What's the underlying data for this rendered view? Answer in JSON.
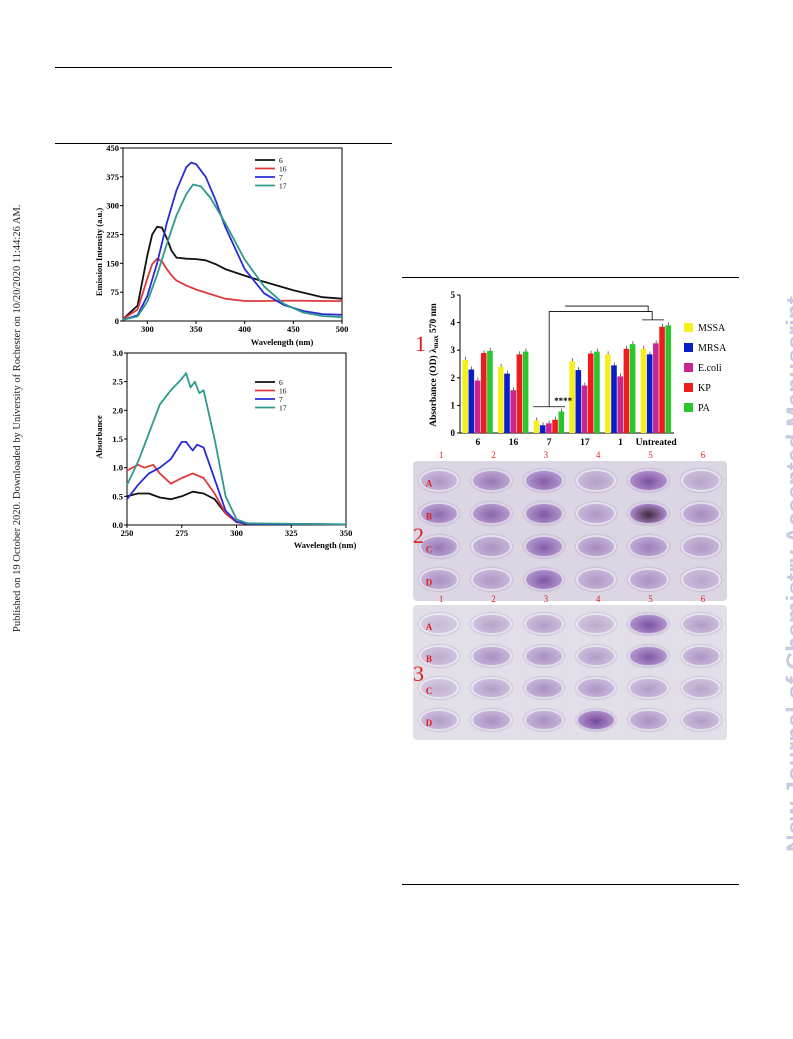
{
  "side_notes": {
    "published": "Published on 19 October 2020. Downloaded by University of Rochester on 10/20/2020 11:44:26 AM.",
    "journal": "New Journal of Chemistry Accepted Manuscript"
  },
  "colors": {
    "s6": "#111111",
    "s16": "#e0393b",
    "s7": "#2b2bd6",
    "s17": "#2d9a8c",
    "MSSA": "#f4ef1d",
    "MRSA": "#0a1ec8",
    "E.coli": "#c8258f",
    "KP": "#ee1c1c",
    "PA": "#2bc62b",
    "plate_purple": "#8a52b5"
  },
  "chart_data": [
    {
      "type": "line",
      "ylabel": "Emission Intensity (a.u.)",
      "xlabel": "Wavelength (nm)",
      "xlim": [
        275,
        500
      ],
      "ylim": [
        0,
        450
      ],
      "xticks": [
        "300",
        "350",
        "400",
        "450",
        "500"
      ],
      "yticks": [
        "0",
        "75",
        "150",
        "225",
        "300",
        "375",
        "450"
      ],
      "legend_position": "top-right",
      "series": [
        {
          "name": "6",
          "color_key": "s6",
          "x": [
            275,
            290,
            300,
            305,
            310,
            315,
            320,
            325,
            330,
            340,
            350,
            360,
            370,
            380,
            400,
            420,
            450,
            480,
            500
          ],
          "y": [
            5,
            40,
            170,
            225,
            245,
            243,
            215,
            182,
            165,
            162,
            161,
            158,
            148,
            135,
            118,
            102,
            80,
            62,
            58
          ]
        },
        {
          "name": "16",
          "color_key": "s16",
          "x": [
            275,
            290,
            300,
            305,
            310,
            315,
            320,
            325,
            330,
            340,
            350,
            360,
            380,
            400,
            420,
            450,
            480,
            500
          ],
          "y": [
            5,
            30,
            110,
            148,
            162,
            155,
            135,
            118,
            105,
            92,
            82,
            74,
            58,
            52,
            52,
            53,
            52,
            52
          ]
        },
        {
          "name": "7",
          "color_key": "s7",
          "x": [
            275,
            290,
            300,
            310,
            320,
            330,
            340,
            345,
            350,
            360,
            370,
            380,
            400,
            420,
            440,
            460,
            480,
            500
          ],
          "y": [
            3,
            15,
            65,
            150,
            255,
            340,
            400,
            412,
            408,
            375,
            315,
            245,
            135,
            72,
            42,
            26,
            18,
            16
          ]
        },
        {
          "name": "17",
          "color_key": "s17",
          "x": [
            275,
            290,
            300,
            310,
            320,
            330,
            340,
            347,
            355,
            365,
            380,
            400,
            420,
            440,
            460,
            480,
            500
          ],
          "y": [
            3,
            12,
            50,
            120,
            200,
            275,
            330,
            355,
            350,
            320,
            255,
            160,
            90,
            45,
            22,
            13,
            10
          ]
        }
      ]
    },
    {
      "type": "line",
      "ylabel": "Absorbance",
      "xlabel": "Wavelength (nm)",
      "xlim": [
        250,
        350
      ],
      "ylim": [
        0,
        3.0
      ],
      "xticks": [
        "250",
        "275",
        "300",
        "325",
        "350"
      ],
      "yticks": [
        "0.0",
        "0.5",
        "1.0",
        "1.5",
        "2.0",
        "2.5",
        "3.0"
      ],
      "legend_position": "top-right",
      "series": [
        {
          "name": "6",
          "color_key": "s6",
          "x": [
            250,
            255,
            260,
            265,
            270,
            275,
            280,
            285,
            290,
            295,
            300,
            305,
            310,
            350
          ],
          "y": [
            0.5,
            0.55,
            0.55,
            0.48,
            0.45,
            0.5,
            0.58,
            0.55,
            0.45,
            0.2,
            0.05,
            0.02,
            0.01,
            0.01
          ]
        },
        {
          "name": "16",
          "color_key": "s16",
          "x": [
            250,
            255,
            258,
            262,
            265,
            270,
            275,
            280,
            285,
            290,
            295,
            300,
            305,
            350
          ],
          "y": [
            0.95,
            1.05,
            1.0,
            1.05,
            0.9,
            0.72,
            0.82,
            0.9,
            0.82,
            0.55,
            0.2,
            0.05,
            0.02,
            0.01
          ]
        },
        {
          "name": "7",
          "color_key": "s7",
          "x": [
            250,
            255,
            260,
            265,
            270,
            275,
            277,
            280,
            282,
            285,
            290,
            295,
            300,
            305,
            350
          ],
          "y": [
            0.45,
            0.7,
            0.9,
            1.0,
            1.15,
            1.45,
            1.45,
            1.3,
            1.4,
            1.35,
            0.8,
            0.25,
            0.06,
            0.02,
            0.01
          ]
        },
        {
          "name": "17",
          "color_key": "s17",
          "x": [
            250,
            255,
            260,
            265,
            270,
            275,
            277,
            279,
            281,
            283,
            285,
            290,
            295,
            300,
            305,
            350
          ],
          "y": [
            0.7,
            1.1,
            1.6,
            2.1,
            2.35,
            2.55,
            2.65,
            2.4,
            2.5,
            2.3,
            2.35,
            1.5,
            0.5,
            0.1,
            0.03,
            0.01
          ]
        }
      ]
    },
    {
      "type": "bar",
      "ylabel": "Absorbance (OD) λmax 570 nm",
      "ylim": [
        0,
        5
      ],
      "yticks": [
        "0",
        "1",
        "2",
        "3",
        "4",
        "5"
      ],
      "categories": [
        "6",
        "16",
        "7",
        "17",
        "1",
        "Untreated"
      ],
      "legend_position": "right",
      "significance": "****",
      "series": [
        {
          "name": "MSSA",
          "values": [
            2.65,
            2.4,
            0.45,
            2.6,
            2.85,
            3.05
          ]
        },
        {
          "name": "MRSA",
          "values": [
            2.3,
            2.15,
            0.28,
            2.28,
            2.45,
            2.85
          ]
        },
        {
          "name": "E.coli",
          "values": [
            1.9,
            1.55,
            0.35,
            1.72,
            2.05,
            3.25
          ]
        },
        {
          "name": "KP",
          "values": [
            2.9,
            2.85,
            0.48,
            2.88,
            3.05,
            3.85
          ]
        },
        {
          "name": "PA",
          "values": [
            2.98,
            2.95,
            0.78,
            2.95,
            3.22,
            3.9
          ]
        }
      ]
    }
  ],
  "panel_labels": {
    "p1": "1",
    "p2": "2",
    "p3": "3"
  },
  "plates": {
    "columns": [
      "1",
      "2",
      "3",
      "4",
      "5",
      "6"
    ],
    "rows": [
      "A",
      "B",
      "C",
      "D"
    ],
    "plate2_wells": [
      [
        0.3,
        0.55,
        0.75,
        0.25,
        0.85,
        0.2
      ],
      [
        0.65,
        0.7,
        0.8,
        0.3,
        0.95,
        0.4
      ],
      [
        0.55,
        0.35,
        0.75,
        0.4,
        0.5,
        0.3
      ],
      [
        0.35,
        0.3,
        0.8,
        0.3,
        0.35,
        0.2
      ]
    ],
    "plate3_wells": [
      [
        0.1,
        0.25,
        0.3,
        0.2,
        0.85,
        0.3
      ],
      [
        0.2,
        0.4,
        0.4,
        0.3,
        0.8,
        0.35
      ],
      [
        0.15,
        0.3,
        0.4,
        0.35,
        0.3,
        0.25
      ],
      [
        0.3,
        0.4,
        0.4,
        0.9,
        0.4,
        0.3
      ]
    ]
  }
}
